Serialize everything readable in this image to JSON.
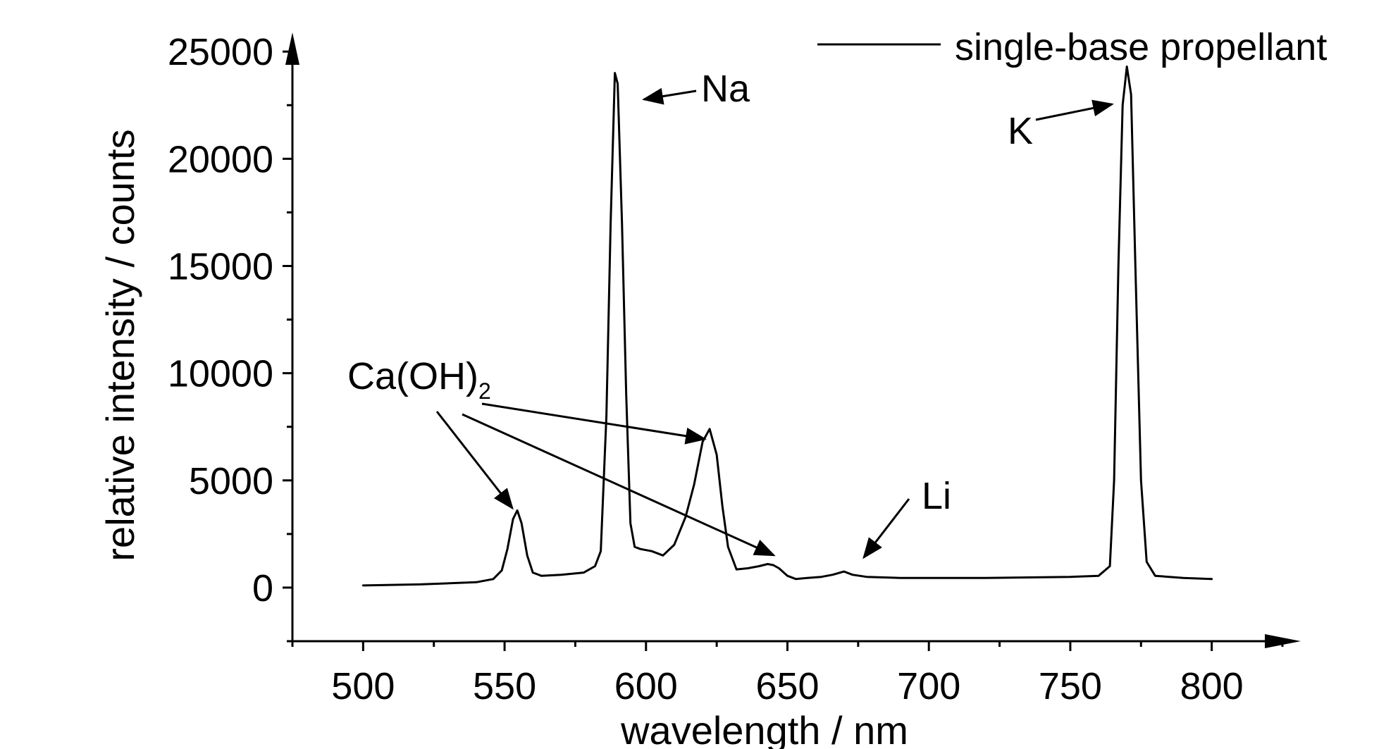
{
  "chart_data": {
    "type": "line",
    "xlabel": "wavelength / nm",
    "ylabel": "relative intensity / counts",
    "xlim": [
      475,
      825
    ],
    "ylim": [
      -2500,
      25500
    ],
    "x_ticks": [
      500,
      550,
      600,
      650,
      700,
      750,
      800
    ],
    "y_ticks": [
      0,
      5000,
      10000,
      15000,
      20000,
      25000
    ],
    "x_tick_labels": [
      "500",
      "550",
      "600",
      "650",
      "700",
      "750",
      "800"
    ],
    "y_tick_labels": [
      "0",
      "5000",
      "10000",
      "15000",
      "20000",
      "25000"
    ],
    "grid": false,
    "legend_position": "top-right",
    "series": [
      {
        "name": "single-base propellant",
        "color": "#000000",
        "x": [
          500,
          520,
          540,
          546,
          549,
          551,
          553,
          554.5,
          556,
          558,
          560,
          563,
          570,
          578,
          582,
          584,
          586,
          587.5,
          589,
          590,
          591.5,
          593,
          594.5,
          596,
          598,
          602,
          606,
          610,
          614,
          617,
          620,
          622.5,
          625,
          627,
          629,
          632,
          636,
          640,
          643,
          645,
          647,
          650,
          653,
          657,
          662,
          666,
          670,
          673,
          678,
          690,
          720,
          750,
          760,
          764,
          765.5,
          767,
          768.5,
          770,
          771.5,
          773,
          775,
          777,
          780,
          790,
          800
        ],
        "y": [
          100,
          150,
          250,
          400,
          800,
          1800,
          3200,
          3600,
          3000,
          1500,
          700,
          550,
          600,
          700,
          1000,
          1700,
          8000,
          17000,
          24000,
          23500,
          17000,
          9000,
          3000,
          1900,
          1800,
          1700,
          1500,
          2000,
          3300,
          4800,
          6800,
          7400,
          6200,
          3800,
          1900,
          850,
          900,
          1000,
          1100,
          1050,
          900,
          550,
          400,
          450,
          500,
          600,
          750,
          600,
          500,
          450,
          450,
          500,
          550,
          1000,
          5000,
          15000,
          22500,
          24300,
          23000,
          15000,
          5000,
          1200,
          550,
          450,
          400
        ]
      }
    ],
    "annotations": [
      {
        "text": "Na",
        "points_to": {
          "x": 590,
          "y": 24200
        }
      },
      {
        "text": "K",
        "points_to": {
          "x": 767,
          "y": 24200
        }
      },
      {
        "text": "Li",
        "points_to": {
          "x": 671,
          "y": 700
        }
      },
      {
        "text": "Ca(OH)",
        "subscript": "2",
        "points_to": [
          {
            "x": 554,
            "y": 3600
          },
          {
            "x": 619,
            "y": 7300
          },
          {
            "x": 645,
            "y": 1500
          }
        ]
      }
    ]
  }
}
